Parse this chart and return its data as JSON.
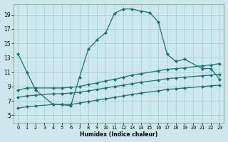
{
  "xlabel": "Humidex (Indice chaleur)",
  "bg_color": "#cce8ec",
  "grid_color": "#9ecdd4",
  "line_color": "#1e7070",
  "xlim": [
    -0.5,
    23.5
  ],
  "ylim": [
    4,
    20.5
  ],
  "xticks": [
    0,
    1,
    2,
    3,
    4,
    5,
    6,
    7,
    8,
    9,
    10,
    11,
    12,
    13,
    14,
    15,
    16,
    17,
    18,
    19,
    20,
    21,
    22,
    23
  ],
  "yticks": [
    5,
    7,
    9,
    11,
    13,
    15,
    17,
    19
  ],
  "series": [
    {
      "x": [
        0,
        1,
        2,
        4,
        5,
        6,
        7,
        8,
        9,
        10,
        11,
        12,
        13,
        14,
        15,
        16,
        17,
        18,
        19,
        21,
        22,
        23
      ],
      "y": [
        13.5,
        11.0,
        8.5,
        6.5,
        6.5,
        6.3,
        10.3,
        14.2,
        15.5,
        16.5,
        19.2,
        19.8,
        19.8,
        19.5,
        19.3,
        18.0,
        13.5,
        12.5,
        12.8,
        11.5,
        11.5,
        10.0
      ]
    },
    {
      "x": [
        0,
        1,
        2,
        4,
        5,
        6,
        7,
        8,
        9,
        10,
        11,
        12,
        13,
        14,
        16,
        17,
        18,
        19,
        21,
        22,
        23
      ],
      "y": [
        8.5,
        8.8,
        8.8,
        8.8,
        8.8,
        8.9,
        9.0,
        9.3,
        9.5,
        9.8,
        10.0,
        10.3,
        10.6,
        10.8,
        11.2,
        11.4,
        11.5,
        11.6,
        11.9,
        12.0,
        12.2
      ]
    },
    {
      "x": [
        0,
        1,
        2,
        4,
        5,
        6,
        7,
        8,
        9,
        10,
        11,
        12,
        13,
        14,
        16,
        17,
        18,
        19,
        21,
        22,
        23
      ],
      "y": [
        7.5,
        7.7,
        7.8,
        8.0,
        8.0,
        8.1,
        8.2,
        8.4,
        8.6,
        8.8,
        9.0,
        9.2,
        9.4,
        9.6,
        9.9,
        10.1,
        10.2,
        10.3,
        10.5,
        10.6,
        10.7
      ]
    },
    {
      "x": [
        0,
        1,
        2,
        4,
        5,
        6,
        7,
        8,
        9,
        10,
        11,
        12,
        13,
        14,
        16,
        17,
        18,
        19,
        21,
        22,
        23
      ],
      "y": [
        6.0,
        6.2,
        6.3,
        6.5,
        6.5,
        6.5,
        6.7,
        6.9,
        7.1,
        7.3,
        7.5,
        7.7,
        7.9,
        8.1,
        8.4,
        8.6,
        8.7,
        8.8,
        9.0,
        9.1,
        9.2
      ]
    }
  ]
}
